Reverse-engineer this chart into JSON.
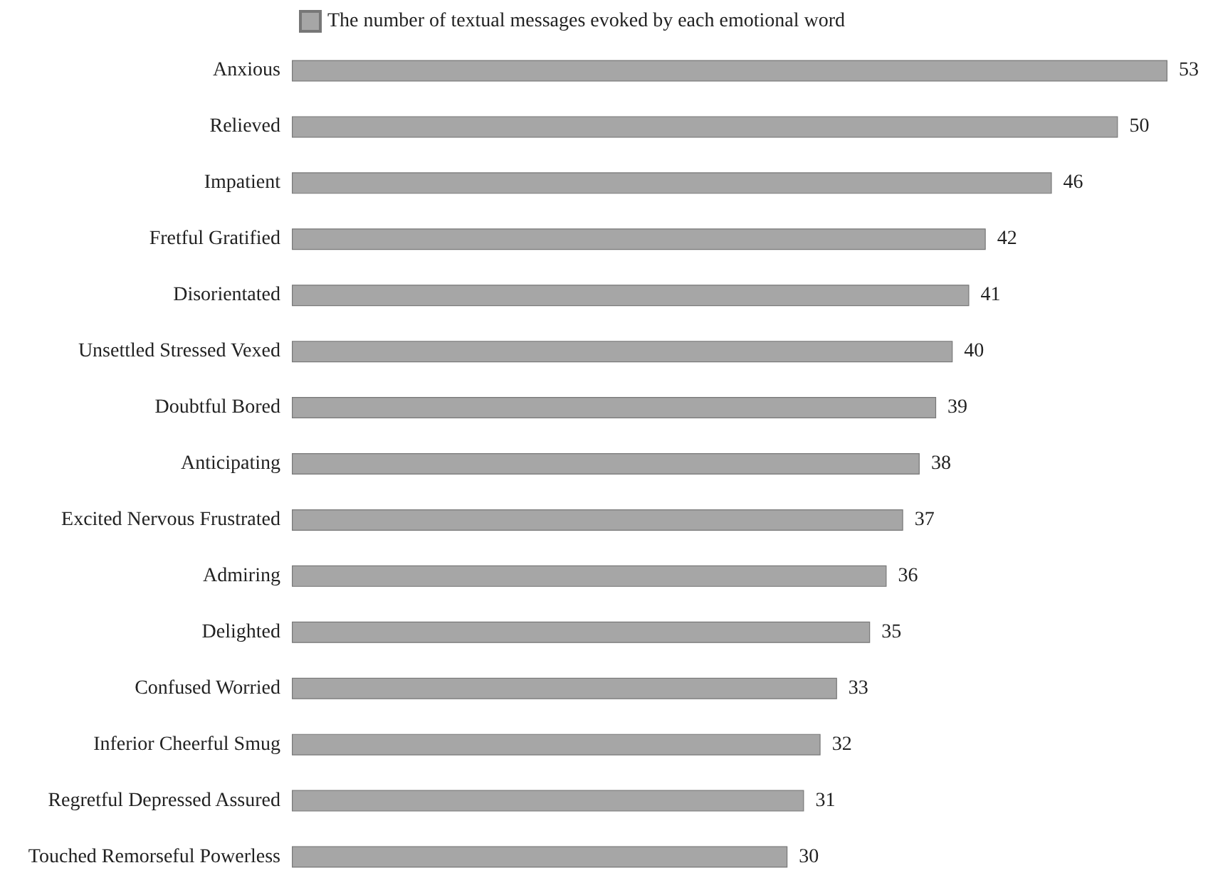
{
  "chart_data": {
    "type": "bar",
    "orientation": "horizontal",
    "categories": [
      "Anxious",
      "Relieved",
      "Impatient",
      "Fretful Gratified",
      "Disorientated",
      "Unsettled Stressed Vexed",
      "Doubtful Bored",
      "Anticipating",
      "Excited Nervous Frustrated",
      "Admiring",
      "Delighted",
      "Confused Worried",
      "Inferior Cheerful Smug",
      "Regretful Depressed Assured",
      "Touched Remorseful Powerless"
    ],
    "series": [
      {
        "name": "The number of textual messages evoked by each emotional word",
        "color": "#a6a6a6",
        "values": [
          53,
          50,
          46,
          42,
          41,
          40,
          39,
          38,
          37,
          36,
          35,
          33,
          32,
          31,
          30
        ]
      }
    ],
    "xlim": [
      0,
      53
    ],
    "data_labels": true,
    "legend": "top",
    "tick_labels": "y"
  }
}
